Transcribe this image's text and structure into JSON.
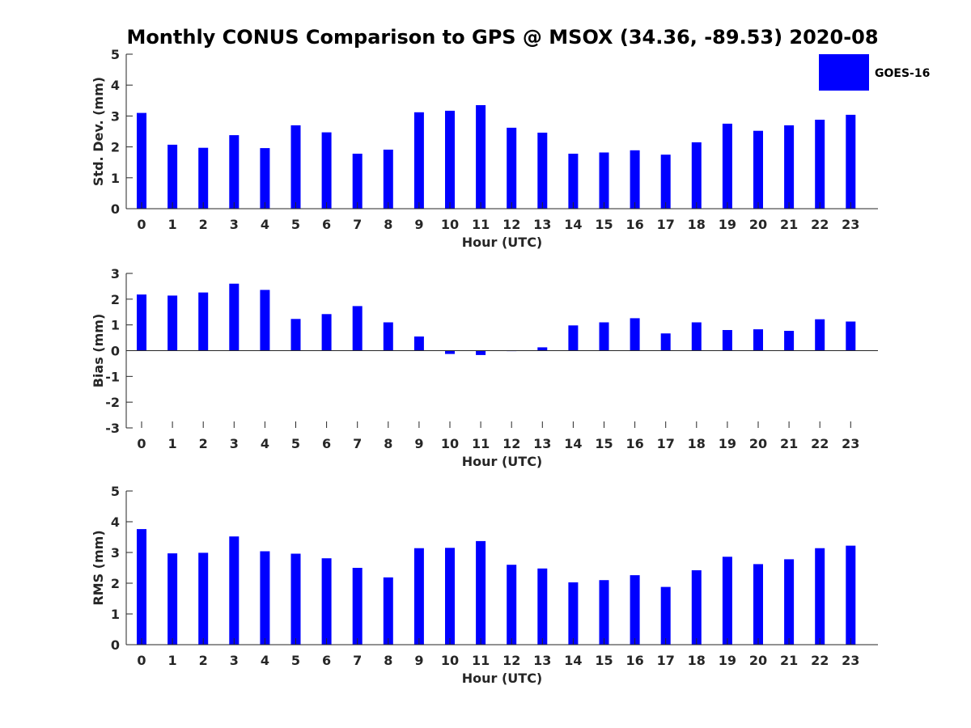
{
  "title": "Monthly CONUS Comparison to GPS @ MSOX (34.36, -89.53) 2020-08",
  "legend": {
    "label": "GOES-16",
    "color": "#0000ff"
  },
  "chart_data": [
    {
      "type": "bar",
      "xlabel": "Hour (UTC)",
      "ylabel": "Std. Dev. (mm)",
      "ylim": [
        0,
        5
      ],
      "yticks": [
        "0",
        "1",
        "2",
        "3",
        "4",
        "5"
      ],
      "categories": [
        "0",
        "1",
        "2",
        "3",
        "4",
        "5",
        "6",
        "7",
        "8",
        "9",
        "10",
        "11",
        "12",
        "13",
        "14",
        "15",
        "16",
        "17",
        "18",
        "19",
        "20",
        "21",
        "22",
        "23"
      ],
      "series": [
        {
          "name": "GOES-16",
          "values": [
            3.1,
            2.07,
            1.97,
            2.38,
            1.96,
            2.7,
            2.47,
            1.78,
            1.91,
            3.12,
            3.17,
            3.35,
            2.62,
            2.46,
            1.78,
            1.82,
            1.89,
            1.75,
            2.15,
            2.75,
            2.52,
            2.7,
            2.88,
            3.04
          ]
        }
      ]
    },
    {
      "type": "bar",
      "xlabel": "Hour (UTC)",
      "ylabel": "Bias (mm)",
      "ylim": [
        -3,
        3
      ],
      "yticks": [
        "-3",
        "-2",
        "-1",
        "0",
        "1",
        "2",
        "3"
      ],
      "categories": [
        "0",
        "1",
        "2",
        "3",
        "4",
        "5",
        "6",
        "7",
        "8",
        "9",
        "10",
        "11",
        "12",
        "13",
        "14",
        "15",
        "16",
        "17",
        "18",
        "19",
        "20",
        "21",
        "22",
        "23"
      ],
      "series": [
        {
          "name": "GOES-16",
          "values": [
            2.18,
            2.14,
            2.26,
            2.6,
            2.36,
            1.23,
            1.42,
            1.73,
            1.1,
            0.55,
            -0.13,
            -0.17,
            -0.02,
            0.13,
            0.98,
            1.1,
            1.26,
            0.67,
            1.1,
            0.8,
            0.83,
            0.77,
            1.22,
            1.13
          ]
        }
      ]
    },
    {
      "type": "bar",
      "xlabel": "Hour (UTC)",
      "ylabel": "RMS (mm)",
      "ylim": [
        0,
        5
      ],
      "yticks": [
        "0",
        "1",
        "2",
        "3",
        "4",
        "5"
      ],
      "categories": [
        "0",
        "1",
        "2",
        "3",
        "4",
        "5",
        "6",
        "7",
        "8",
        "9",
        "10",
        "11",
        "12",
        "13",
        "14",
        "15",
        "16",
        "17",
        "18",
        "19",
        "20",
        "21",
        "22",
        "23"
      ],
      "series": [
        {
          "name": "GOES-16",
          "values": [
            3.76,
            2.97,
            2.99,
            3.52,
            3.04,
            2.96,
            2.81,
            2.5,
            2.19,
            3.14,
            3.15,
            3.37,
            2.6,
            2.48,
            2.03,
            2.1,
            2.26,
            1.88,
            2.42,
            2.86,
            2.62,
            2.78,
            3.14,
            3.22
          ]
        }
      ]
    }
  ]
}
